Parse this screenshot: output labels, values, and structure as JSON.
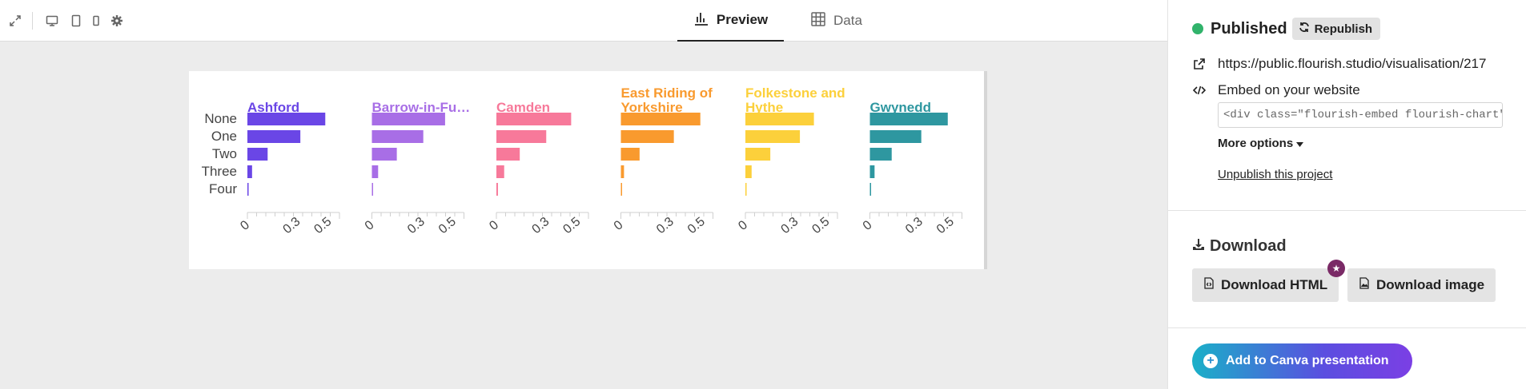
{
  "toolbar": {
    "icons": [
      "expand-icon",
      "desktop-icon",
      "tablet-icon",
      "mobile-icon",
      "settings-icon"
    ]
  },
  "tabs": [
    {
      "label": "Preview",
      "icon": "bar-chart-icon",
      "active": true
    },
    {
      "label": "Data",
      "icon": "table-grid-icon",
      "active": false
    }
  ],
  "chart_data": {
    "type": "bar",
    "orientation": "horizontal",
    "layout": "small-multiples",
    "categories": [
      "None",
      "One",
      "Two",
      "Three",
      "Four"
    ],
    "xticks": [
      "0",
      "0.3",
      "0.5"
    ],
    "xlim": [
      0,
      0.55
    ],
    "series": [
      {
        "name": "Ashford",
        "color": "#6a46e6",
        "values": [
          0.5,
          0.34,
          0.13,
          0.03,
          0.005
        ]
      },
      {
        "name": "Barrow-in-Fu…",
        "color": "#a86ee6",
        "values": [
          0.47,
          0.33,
          0.16,
          0.04,
          0.005
        ]
      },
      {
        "name": "Camden",
        "color": "#f7799a",
        "values": [
          0.48,
          0.32,
          0.15,
          0.05,
          0.01
        ]
      },
      {
        "name": "East Riding of Yorkshire",
        "color": "#f99a2e",
        "values": [
          0.51,
          0.34,
          0.12,
          0.02,
          0.004
        ]
      },
      {
        "name": "Folkestone and Hythe",
        "color": "#fcd03b",
        "values": [
          0.44,
          0.35,
          0.16,
          0.04,
          0.004
        ]
      },
      {
        "name": "Gwynedd",
        "color": "#2e97a0",
        "values": [
          0.5,
          0.33,
          0.14,
          0.03,
          0.004
        ]
      }
    ]
  },
  "panel": {
    "status": "Published",
    "status_color": "#31b36b",
    "republish_label": "Republish",
    "url": "https://public.flourish.studio/visualisation/217",
    "embed_label": "Embed on your website",
    "embed_code": "<div class=\"flourish-embed flourish-chart\" data-",
    "more_options_label": "More options",
    "unpublish_label": "Unpublish this project",
    "download_title": "Download",
    "download_html_label": "Download HTML",
    "download_image_label": "Download image",
    "canva_label": "Add to Canva presentation"
  }
}
